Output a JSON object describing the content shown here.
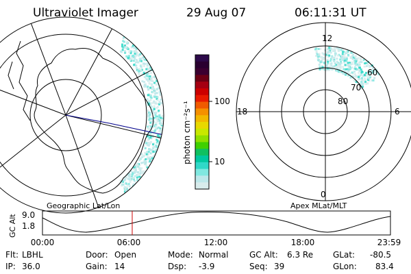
{
  "header": {
    "instrument": "Ultraviolet Imager",
    "date": "29 Aug 07",
    "time": "06:11:31 UT"
  },
  "colorbar": {
    "label": "photon cm⁻²s⁻¹",
    "ticks": [
      "100",
      "10"
    ],
    "colors": [
      "#2d0a4a",
      "#2a0030",
      "#3b0030",
      "#6b0014",
      "#a50012",
      "#cc0000",
      "#e81a00",
      "#f05a00",
      "#f59000",
      "#f2b800",
      "#e8d800",
      "#c8e800",
      "#90e000",
      "#40d000",
      "#10c060",
      "#00c8a0",
      "#30d8c8",
      "#80e8e0",
      "#bde8ea",
      "#d8ecec"
    ]
  },
  "left_panel": {
    "caption": "Geographic Lat/Lon"
  },
  "right_panel": {
    "caption": "Apex  MLat/MLT",
    "mlt_labels": {
      "top": "12",
      "left": "18",
      "right": "6",
      "bottom": "0"
    },
    "lat_labels": [
      "60",
      "70",
      "80"
    ]
  },
  "timeline": {
    "axis_label": "GC Alt",
    "y_ticks": [
      "9.0",
      "1.8"
    ],
    "x_ticks": [
      "00:00",
      "06:00",
      "12:00",
      "18:00",
      "23:59"
    ],
    "marker_time": "06:11",
    "marker_color": "#cc0000"
  },
  "status": {
    "flt_label": "Flt:",
    "flt_value": "LBHL",
    "ip_label": "IP:",
    "ip_value": "36.0",
    "door_label": "Door:",
    "door_value": "Open",
    "gain_label": "Gain:",
    "gain_value": "14",
    "mode_label": "Mode:",
    "mode_value": "Normal",
    "dsp_label": "Dsp:",
    "dsp_value": "-3.9",
    "gcalt_label": "GC Alt:",
    "gcalt_value": "6.3 Re",
    "seq_label": "Seq:",
    "seq_value": "39",
    "glat_label": "GLat:",
    "glat_value": "-80.5",
    "glon_label": "GLon:",
    "glon_value": "83.4"
  }
}
